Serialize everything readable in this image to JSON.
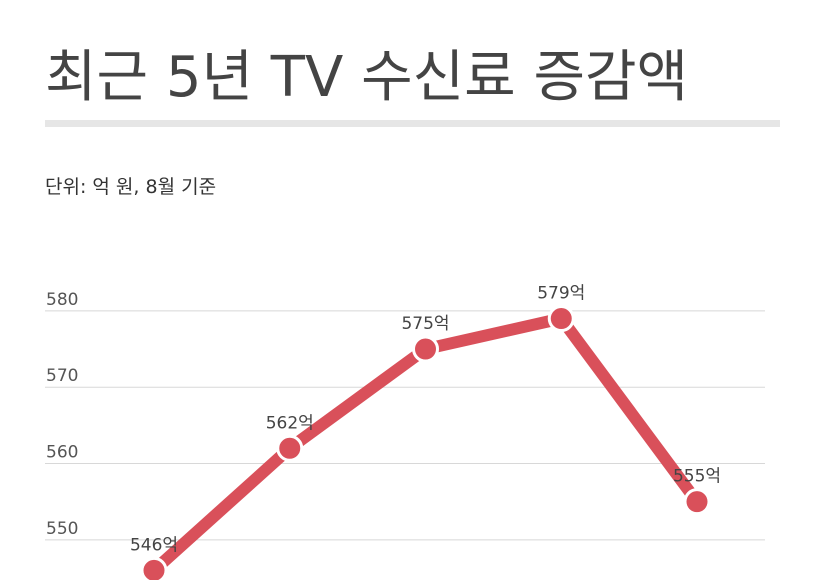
{
  "chart_data": {
    "type": "line",
    "title": "최근 5년 TV 수신료 증감액",
    "subtitle": "단위: 억 원, 8월 기준",
    "categories": [
      null,
      null,
      null,
      null,
      null
    ],
    "values": [
      546,
      562,
      575,
      579,
      555
    ],
    "value_labels": [
      "546억",
      "562억",
      "575억",
      "579억",
      "555억"
    ],
    "color": "#d9505a",
    "ylim": [
      545,
      583
    ],
    "yticks": [
      550,
      560,
      570,
      580
    ],
    "grid": true
  }
}
